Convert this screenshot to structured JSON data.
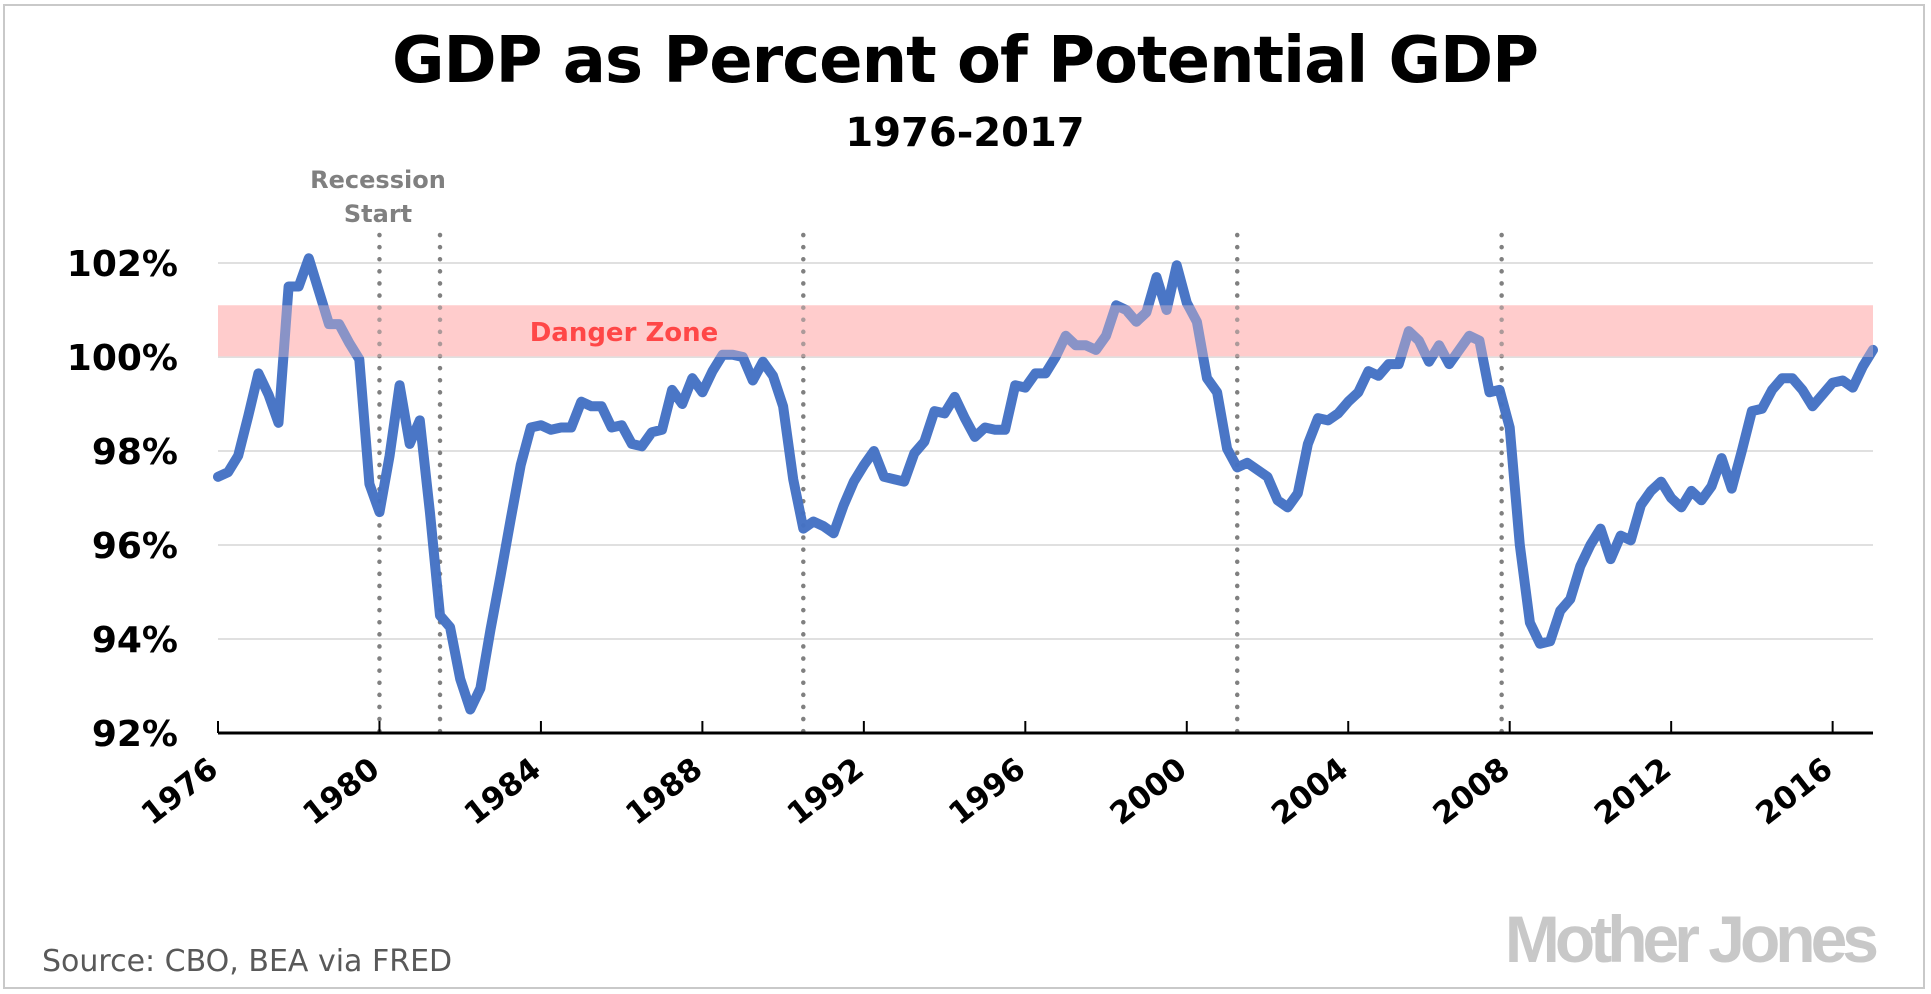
{
  "chart_data": {
    "type": "line",
    "title": "GDP as Percent of Potential GDP",
    "subtitle": "1976-2017",
    "xlabel": "",
    "ylabel": "",
    "xlim": [
      1976,
      2017
    ],
    "ylim": [
      92,
      102
    ],
    "x_ticks": [
      1976,
      1980,
      1984,
      1988,
      1992,
      1996,
      2000,
      2004,
      2008,
      2012,
      2016
    ],
    "x_tick_labels": [
      "1976",
      "1980",
      "1984",
      "1988",
      "1992",
      "1996",
      "2000",
      "2004",
      "2008",
      "2012",
      "2016"
    ],
    "y_ticks": [
      92,
      94,
      96,
      98,
      100,
      102
    ],
    "y_tick_labels": [
      "92%",
      "94%",
      "96%",
      "98%",
      "100%",
      "102%"
    ],
    "grid": "horizontal",
    "legend": "none",
    "series": [
      {
        "name": "GDP as percent of potential GDP",
        "color": "#4472c4",
        "x": [
          1976.0,
          1976.25,
          1976.5,
          1976.75,
          1977.0,
          1977.25,
          1977.5,
          1977.75,
          1978.0,
          1978.25,
          1978.5,
          1978.75,
          1979.0,
          1979.25,
          1979.5,
          1979.75,
          1980.0,
          1980.25,
          1980.5,
          1980.75,
          1981.0,
          1981.25,
          1981.5,
          1981.75,
          1982.0,
          1982.25,
          1982.5,
          1982.75,
          1983.0,
          1983.25,
          1983.5,
          1983.75,
          1984.0,
          1984.25,
          1984.5,
          1984.75,
          1985.0,
          1985.25,
          1985.5,
          1985.75,
          1986.0,
          1986.25,
          1986.5,
          1986.75,
          1987.0,
          1987.25,
          1987.5,
          1987.75,
          1988.0,
          1988.25,
          1988.5,
          1988.75,
          1989.0,
          1989.25,
          1989.5,
          1989.75,
          1990.0,
          1990.25,
          1990.5,
          1990.75,
          1991.0,
          1991.25,
          1991.5,
          1991.75,
          1992.0,
          1992.25,
          1992.5,
          1992.75,
          1993.0,
          1993.25,
          1993.5,
          1993.75,
          1994.0,
          1994.25,
          1994.5,
          1994.75,
          1995.0,
          1995.25,
          1995.5,
          1995.75,
          1996.0,
          1996.25,
          1996.5,
          1996.75,
          1997.0,
          1997.25,
          1997.5,
          1997.75,
          1998.0,
          1998.25,
          1998.5,
          1998.75,
          1999.0,
          1999.25,
          1999.5,
          1999.75,
          2000.0,
          2000.25,
          2000.5,
          2000.75,
          2001.0,
          2001.25,
          2001.5,
          2001.75,
          2002.0,
          2002.25,
          2002.5,
          2002.75,
          2003.0,
          2003.25,
          2003.5,
          2003.75,
          2004.0,
          2004.25,
          2004.5,
          2004.75,
          2005.0,
          2005.25,
          2005.5,
          2005.75,
          2006.0,
          2006.25,
          2006.5,
          2006.75,
          2007.0,
          2007.25,
          2007.5,
          2007.75,
          2008.0,
          2008.25,
          2008.5,
          2008.75,
          2009.0,
          2009.25,
          2009.5,
          2009.75,
          2010.0,
          2010.25,
          2010.5,
          2010.75,
          2011.0,
          2011.25,
          2011.5,
          2011.75,
          2012.0,
          2012.25,
          2012.5,
          2012.75,
          2013.0,
          2013.25,
          2013.5,
          2013.75,
          2014.0,
          2014.25,
          2014.5,
          2014.75,
          2015.0,
          2015.25,
          2015.5,
          2015.75,
          2016.0,
          2016.25,
          2016.5,
          2016.75,
          2017.0
        ],
        "values": [
          97.45,
          97.55,
          97.9,
          98.75,
          99.65,
          99.2,
          98.6,
          101.5,
          101.5,
          102.1,
          101.4,
          100.7,
          100.7,
          100.3,
          99.95,
          97.3,
          96.7,
          97.9,
          99.4,
          98.15,
          98.65,
          96.7,
          94.5,
          94.25,
          93.15,
          92.5,
          92.95,
          94.2,
          95.35,
          96.55,
          97.7,
          98.5,
          98.55,
          98.45,
          98.5,
          98.5,
          99.05,
          98.95,
          98.95,
          98.5,
          98.55,
          98.15,
          98.1,
          98.4,
          98.45,
          99.3,
          99.0,
          99.55,
          99.25,
          99.7,
          100.05,
          100.05,
          100.0,
          99.5,
          99.9,
          99.6,
          98.95,
          97.4,
          96.35,
          96.5,
          96.4,
          96.25,
          96.85,
          97.35,
          97.7,
          98.0,
          97.45,
          97.4,
          97.35,
          97.95,
          98.2,
          98.85,
          98.8,
          99.15,
          98.7,
          98.3,
          98.5,
          98.45,
          98.45,
          99.4,
          99.35,
          99.65,
          99.65,
          100.0,
          100.45,
          100.25,
          100.25,
          100.15,
          100.45,
          101.1,
          101.0,
          100.75,
          100.95,
          101.7,
          101.0,
          101.95,
          101.15,
          100.75,
          99.55,
          99.25,
          98.05,
          97.65,
          97.75,
          97.6,
          97.45,
          96.95,
          96.8,
          97.1,
          98.15,
          98.7,
          98.65,
          98.8,
          99.05,
          99.25,
          99.7,
          99.6,
          99.85,
          99.85,
          100.55,
          100.35,
          99.9,
          100.25,
          99.85,
          100.15,
          100.45,
          100.35,
          99.25,
          99.3,
          98.5,
          96.0,
          94.35,
          93.9,
          93.95,
          94.6,
          94.85,
          95.55,
          96.0,
          96.35,
          95.7,
          96.2,
          96.1,
          96.85,
          97.15,
          97.35,
          97.0,
          96.8,
          97.15,
          96.95,
          97.25,
          97.85,
          97.2,
          98.0,
          98.85,
          98.9,
          99.3,
          99.55,
          99.55,
          99.3,
          98.95,
          99.2,
          99.45,
          99.5,
          99.35,
          99.8,
          100.15
        ]
      }
    ],
    "bands": [
      {
        "name": "danger-zone",
        "label": "Danger Zone",
        "y_from": 100.0,
        "y_to": 101.1,
        "color": "#ffcccc",
        "label_color": "#ff0000"
      }
    ],
    "vertical_lines": {
      "label": [
        "Recession",
        "Start"
      ],
      "color": "#808080",
      "style": "dotted",
      "x": [
        1980.0,
        1981.5,
        1990.5,
        2001.25,
        2007.8
      ]
    },
    "source": "Source: CBO, BEA via FRED",
    "brand": "Mother Jones"
  }
}
